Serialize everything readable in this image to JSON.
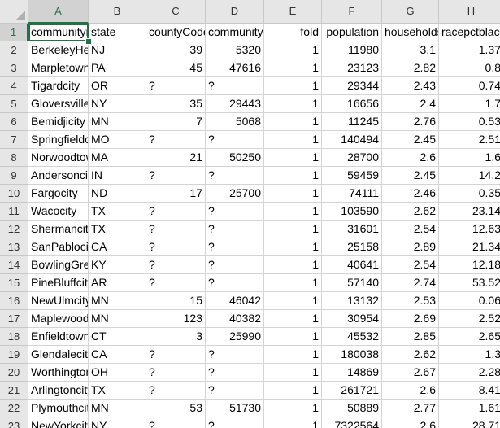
{
  "sheet": {
    "columns": [
      "A",
      "B",
      "C",
      "D",
      "E",
      "F",
      "G",
      "H"
    ],
    "rows": [
      {
        "n": "1",
        "cells": [
          "communityname",
          "state",
          "countyCode",
          "communityCode",
          "fold",
          "population",
          "householdsize",
          "racepctblack"
        ]
      },
      {
        "n": "2",
        "cells": [
          "BerkeleyHeightstownship",
          "NJ",
          "39",
          "5320",
          "1",
          "11980",
          "3.1",
          "1.37"
        ]
      },
      {
        "n": "3",
        "cells": [
          "Marpletowntownship",
          "PA",
          "45",
          "47616",
          "1",
          "23123",
          "2.82",
          "0.8"
        ]
      },
      {
        "n": "4",
        "cells": [
          "Tigardcity",
          "OR",
          "?",
          "?",
          "1",
          "29344",
          "2.43",
          "0.74"
        ]
      },
      {
        "n": "5",
        "cells": [
          "Gloversvillecity",
          "NY",
          "35",
          "29443",
          "1",
          "16656",
          "2.4",
          "1.7"
        ]
      },
      {
        "n": "6",
        "cells": [
          "Bemidjicity",
          "MN",
          "7",
          "5068",
          "1",
          "11245",
          "2.76",
          "0.53"
        ]
      },
      {
        "n": "7",
        "cells": [
          "Springfieldcity",
          "MO",
          "?",
          "?",
          "1",
          "140494",
          "2.45",
          "2.51"
        ]
      },
      {
        "n": "8",
        "cells": [
          "Norwoodtown",
          "MA",
          "21",
          "50250",
          "1",
          "28700",
          "2.6",
          "1.6"
        ]
      },
      {
        "n": "9",
        "cells": [
          "Andersoncity",
          "IN",
          "?",
          "?",
          "1",
          "59459",
          "2.45",
          "14.2"
        ]
      },
      {
        "n": "10",
        "cells": [
          "Fargocity",
          "ND",
          "17",
          "25700",
          "1",
          "74111",
          "2.46",
          "0.35"
        ]
      },
      {
        "n": "11",
        "cells": [
          "Wacocity",
          "TX",
          "?",
          "?",
          "1",
          "103590",
          "2.62",
          "23.14"
        ]
      },
      {
        "n": "12",
        "cells": [
          "Shermancity",
          "TX",
          "?",
          "?",
          "1",
          "31601",
          "2.54",
          "12.63"
        ]
      },
      {
        "n": "13",
        "cells": [
          "SanPablocity",
          "CA",
          "?",
          "?",
          "1",
          "25158",
          "2.89",
          "21.34"
        ]
      },
      {
        "n": "14",
        "cells": [
          "BowlingGreencity",
          "KY",
          "?",
          "?",
          "1",
          "40641",
          "2.54",
          "12.18"
        ]
      },
      {
        "n": "15",
        "cells": [
          "PineBluffcity",
          "AR",
          "?",
          "?",
          "1",
          "57140",
          "2.74",
          "53.52"
        ]
      },
      {
        "n": "16",
        "cells": [
          "NewUlmcity",
          "MN",
          "15",
          "46042",
          "1",
          "13132",
          "2.53",
          "0.06"
        ]
      },
      {
        "n": "17",
        "cells": [
          "Maplewoodcity",
          "MN",
          "123",
          "40382",
          "1",
          "30954",
          "2.69",
          "2.52"
        ]
      },
      {
        "n": "18",
        "cells": [
          "Enfieldtown",
          "CT",
          "3",
          "25990",
          "1",
          "45532",
          "2.85",
          "2.65"
        ]
      },
      {
        "n": "19",
        "cells": [
          "Glendalecity",
          "CA",
          "?",
          "?",
          "1",
          "180038",
          "2.62",
          "1.3"
        ]
      },
      {
        "n": "20",
        "cells": [
          "Worthingtoncity",
          "OH",
          "?",
          "?",
          "1",
          "14869",
          "2.67",
          "2.28"
        ]
      },
      {
        "n": "21",
        "cells": [
          "Arlingtoncity",
          "TX",
          "?",
          "?",
          "1",
          "261721",
          "2.6",
          "8.41"
        ]
      },
      {
        "n": "22",
        "cells": [
          "Plymouthcity",
          "MN",
          "53",
          "51730",
          "1",
          "50889",
          "2.77",
          "1.61"
        ]
      },
      {
        "n": "23",
        "cells": [
          "NewYorkcity",
          "NY",
          "?",
          "?",
          "1",
          "7322564",
          "2.6",
          "28.71"
        ]
      }
    ]
  }
}
